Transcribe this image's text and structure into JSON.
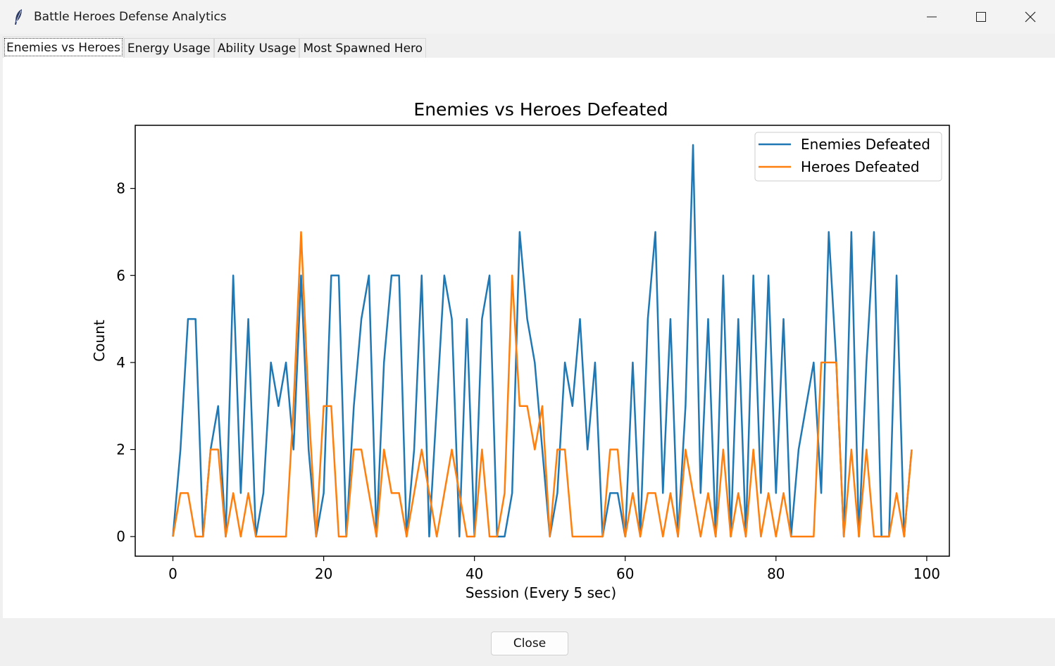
{
  "window": {
    "title": "Battle Heroes Defense Analytics",
    "icon": "feather-icon"
  },
  "tabs": [
    {
      "label": "Enemies vs Heroes",
      "active": true
    },
    {
      "label": "Energy Usage",
      "active": false
    },
    {
      "label": "Ability Usage",
      "active": false
    },
    {
      "label": "Most Spawned Hero",
      "active": false
    }
  ],
  "footer": {
    "close_label": "Close"
  },
  "colors": {
    "enemies": "#1f77b4",
    "heroes": "#ff7f0e"
  },
  "chart_data": {
    "type": "line",
    "title": "Enemies vs Heroes Defeated",
    "xlabel": "Session (Every 5 sec)",
    "ylabel": "Count",
    "xlim": [
      -5,
      103
    ],
    "ylim": [
      -0.45,
      9.45
    ],
    "xticks": [
      0,
      20,
      40,
      60,
      80,
      100
    ],
    "yticks": [
      0,
      2,
      4,
      6,
      8
    ],
    "legend_position": "top-right",
    "series": [
      {
        "name": "Enemies Defeated",
        "color": "#1f77b4",
        "x": [
          0,
          1,
          2,
          3,
          4,
          5,
          6,
          7,
          8,
          9,
          10,
          11,
          12,
          13,
          14,
          15,
          16,
          17,
          18,
          19,
          20,
          21,
          22,
          23,
          24,
          25,
          26,
          27,
          28,
          29,
          30,
          31,
          32,
          33,
          34,
          35,
          36,
          37,
          38,
          39,
          40,
          41,
          42,
          43,
          44,
          45,
          46,
          47,
          48,
          49,
          50,
          51,
          52,
          53,
          54,
          55,
          56,
          57,
          58,
          59,
          60,
          61,
          62,
          63,
          64,
          65,
          66,
          67,
          68,
          69,
          70,
          71,
          72,
          73,
          74,
          75,
          76,
          77,
          78,
          79,
          80,
          81,
          82,
          83,
          84,
          85,
          86,
          87,
          88,
          89,
          90,
          91,
          92,
          93,
          94,
          95,
          96,
          97,
          98
        ],
        "values": [
          0,
          2,
          5,
          5,
          0,
          2,
          3,
          0,
          6,
          1,
          5,
          0,
          1,
          4,
          3,
          4,
          2,
          6,
          2,
          0,
          1,
          6,
          6,
          0,
          3,
          5,
          6,
          0,
          4,
          6,
          6,
          0,
          2,
          6,
          0,
          3,
          6,
          5,
          0,
          5,
          0,
          5,
          6,
          0,
          0,
          1,
          7,
          5,
          4,
          2,
          0,
          1,
          4,
          3,
          5,
          2,
          4,
          0,
          1,
          1,
          0,
          4,
          0,
          5,
          7,
          1,
          5,
          0,
          3,
          9,
          1,
          5,
          0,
          6,
          0,
          5,
          0,
          6,
          1,
          6,
          1,
          5,
          0,
          2,
          3,
          4,
          1,
          7,
          4,
          0,
          7,
          0,
          4,
          7,
          0,
          0,
          6,
          0,
          2
        ]
      },
      {
        "name": "Heroes Defeated",
        "color": "#ff7f0e",
        "x": [
          0,
          1,
          2,
          3,
          4,
          5,
          6,
          7,
          8,
          9,
          10,
          11,
          12,
          13,
          14,
          15,
          16,
          17,
          18,
          19,
          20,
          21,
          22,
          23,
          24,
          25,
          26,
          27,
          28,
          29,
          30,
          31,
          32,
          33,
          34,
          35,
          36,
          37,
          38,
          39,
          40,
          41,
          42,
          43,
          44,
          45,
          46,
          47,
          48,
          49,
          50,
          51,
          52,
          53,
          54,
          55,
          56,
          57,
          58,
          59,
          60,
          61,
          62,
          63,
          64,
          65,
          66,
          67,
          68,
          69,
          70,
          71,
          72,
          73,
          74,
          75,
          76,
          77,
          78,
          79,
          80,
          81,
          82,
          83,
          84,
          85,
          86,
          87,
          88,
          89,
          90,
          91,
          92,
          93,
          94,
          95,
          96,
          97,
          98
        ],
        "values": [
          0,
          1,
          1,
          0,
          0,
          2,
          2,
          0,
          1,
          0,
          1,
          0,
          0,
          0,
          0,
          0,
          3,
          7,
          3,
          0,
          3,
          3,
          0,
          0,
          2,
          2,
          1,
          0,
          2,
          1,
          1,
          0,
          1,
          2,
          1,
          0,
          1,
          2,
          1,
          0,
          0,
          2,
          0,
          0,
          1,
          6,
          3,
          3,
          2,
          3,
          0,
          2,
          2,
          0,
          0,
          0,
          0,
          0,
          2,
          2,
          0,
          1,
          0,
          1,
          1,
          0,
          1,
          0,
          2,
          1,
          0,
          1,
          0,
          2,
          0,
          1,
          0,
          2,
          0,
          1,
          0,
          1,
          0,
          0,
          0,
          0,
          4,
          4,
          4,
          0,
          2,
          0,
          2,
          0,
          0,
          0,
          1,
          0,
          2
        ]
      }
    ]
  }
}
